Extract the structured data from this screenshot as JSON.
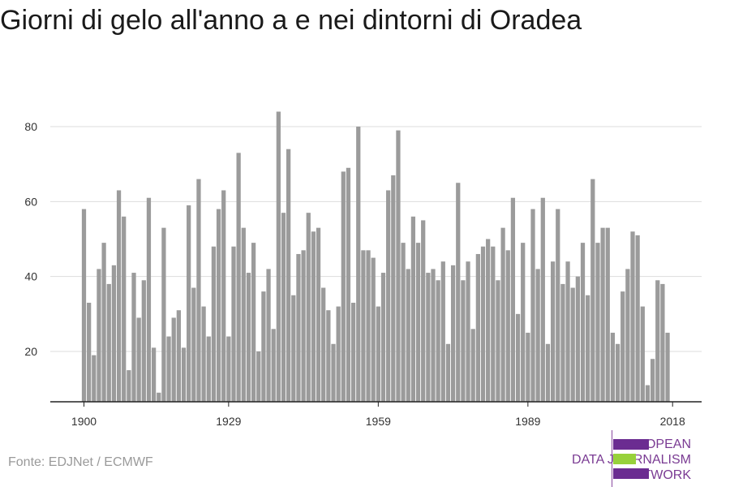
{
  "title": "Giorni di gelo all'anno a e nei dintorni di Oradea",
  "source": "Fonte: EDJNet / ECMWF",
  "logo": {
    "line1": "EUROPEAN",
    "line2": "DATA JOURNALISM",
    "line3": "NETWORK"
  },
  "colors": {
    "bar": "#9b9b9b",
    "grid": "#dddddd",
    "axis": "#222222",
    "logo_purple": "#6b2c91",
    "logo_green": "#97d13b"
  },
  "chart_data": {
    "type": "bar",
    "title": "Giorni di gelo all'anno a e nei dintorni di Oradea",
    "xlabel": "",
    "ylabel": "",
    "x_start": 1900,
    "x_end": 2018,
    "x_ticks": [
      "1900",
      "1929",
      "1959",
      "1989",
      "2018"
    ],
    "y_ticks": [
      "20",
      "40",
      "60",
      "80"
    ],
    "ylim": [
      6,
      86
    ],
    "grid": true,
    "values": [
      58,
      33,
      19,
      42,
      49,
      38,
      43,
      63,
      56,
      15,
      41,
      29,
      39,
      61,
      21,
      9,
      53,
      24,
      29,
      31,
      21,
      59,
      37,
      66,
      32,
      24,
      48,
      58,
      63,
      24,
      48,
      73,
      53,
      41,
      49,
      20,
      36,
      42,
      26,
      84,
      57,
      74,
      35,
      46,
      47,
      57,
      52,
      53,
      37,
      31,
      22,
      32,
      68,
      69,
      33,
      80,
      47,
      47,
      45,
      32,
      41,
      63,
      67,
      79,
      49,
      42,
      56,
      49,
      55,
      41,
      42,
      39,
      44,
      22,
      43,
      65,
      39,
      44,
      26,
      46,
      48,
      50,
      48,
      39,
      53,
      47,
      61,
      30,
      49,
      25,
      58,
      42,
      61,
      22,
      44,
      58,
      38,
      44,
      37,
      40,
      49,
      35,
      66,
      49,
      53,
      53,
      25,
      22,
      36,
      42,
      52,
      51,
      32,
      11,
      18,
      39,
      38,
      25
    ]
  }
}
